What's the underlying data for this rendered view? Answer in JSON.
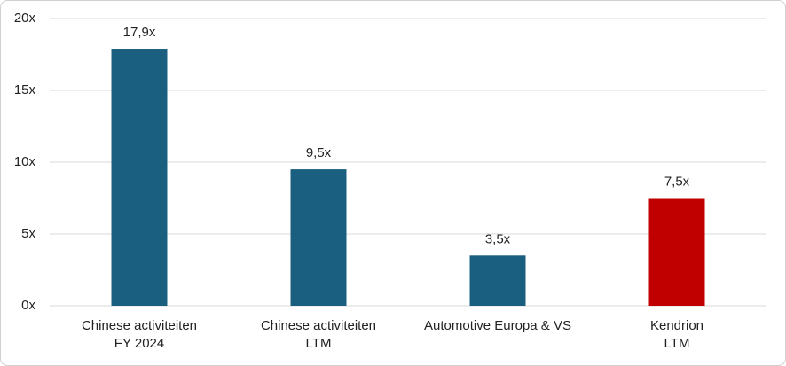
{
  "chart_data": {
    "type": "bar",
    "categories": [
      [
        "Chinese activiteiten",
        "FY 2024"
      ],
      [
        "Chinese activiteiten",
        "LTM"
      ],
      [
        "Automotive Europa & VS"
      ],
      [
        "Kendrion",
        "LTM"
      ]
    ],
    "values": [
      17.9,
      9.5,
      3.5,
      7.5
    ],
    "value_labels": [
      "17,9x",
      "9,5x",
      "3,5x",
      "7,5x"
    ],
    "colors": [
      "#1b5f80",
      "#1b5f80",
      "#1b5f80",
      "#c00000"
    ],
    "ylim": [
      0,
      20
    ],
    "yticks": [
      {
        "value": 0,
        "label": "0x"
      },
      {
        "value": 5,
        "label": "5x"
      },
      {
        "value": 10,
        "label": "10x"
      },
      {
        "value": 15,
        "label": "15x"
      },
      {
        "value": 20,
        "label": "20x"
      }
    ],
    "grid": true
  }
}
